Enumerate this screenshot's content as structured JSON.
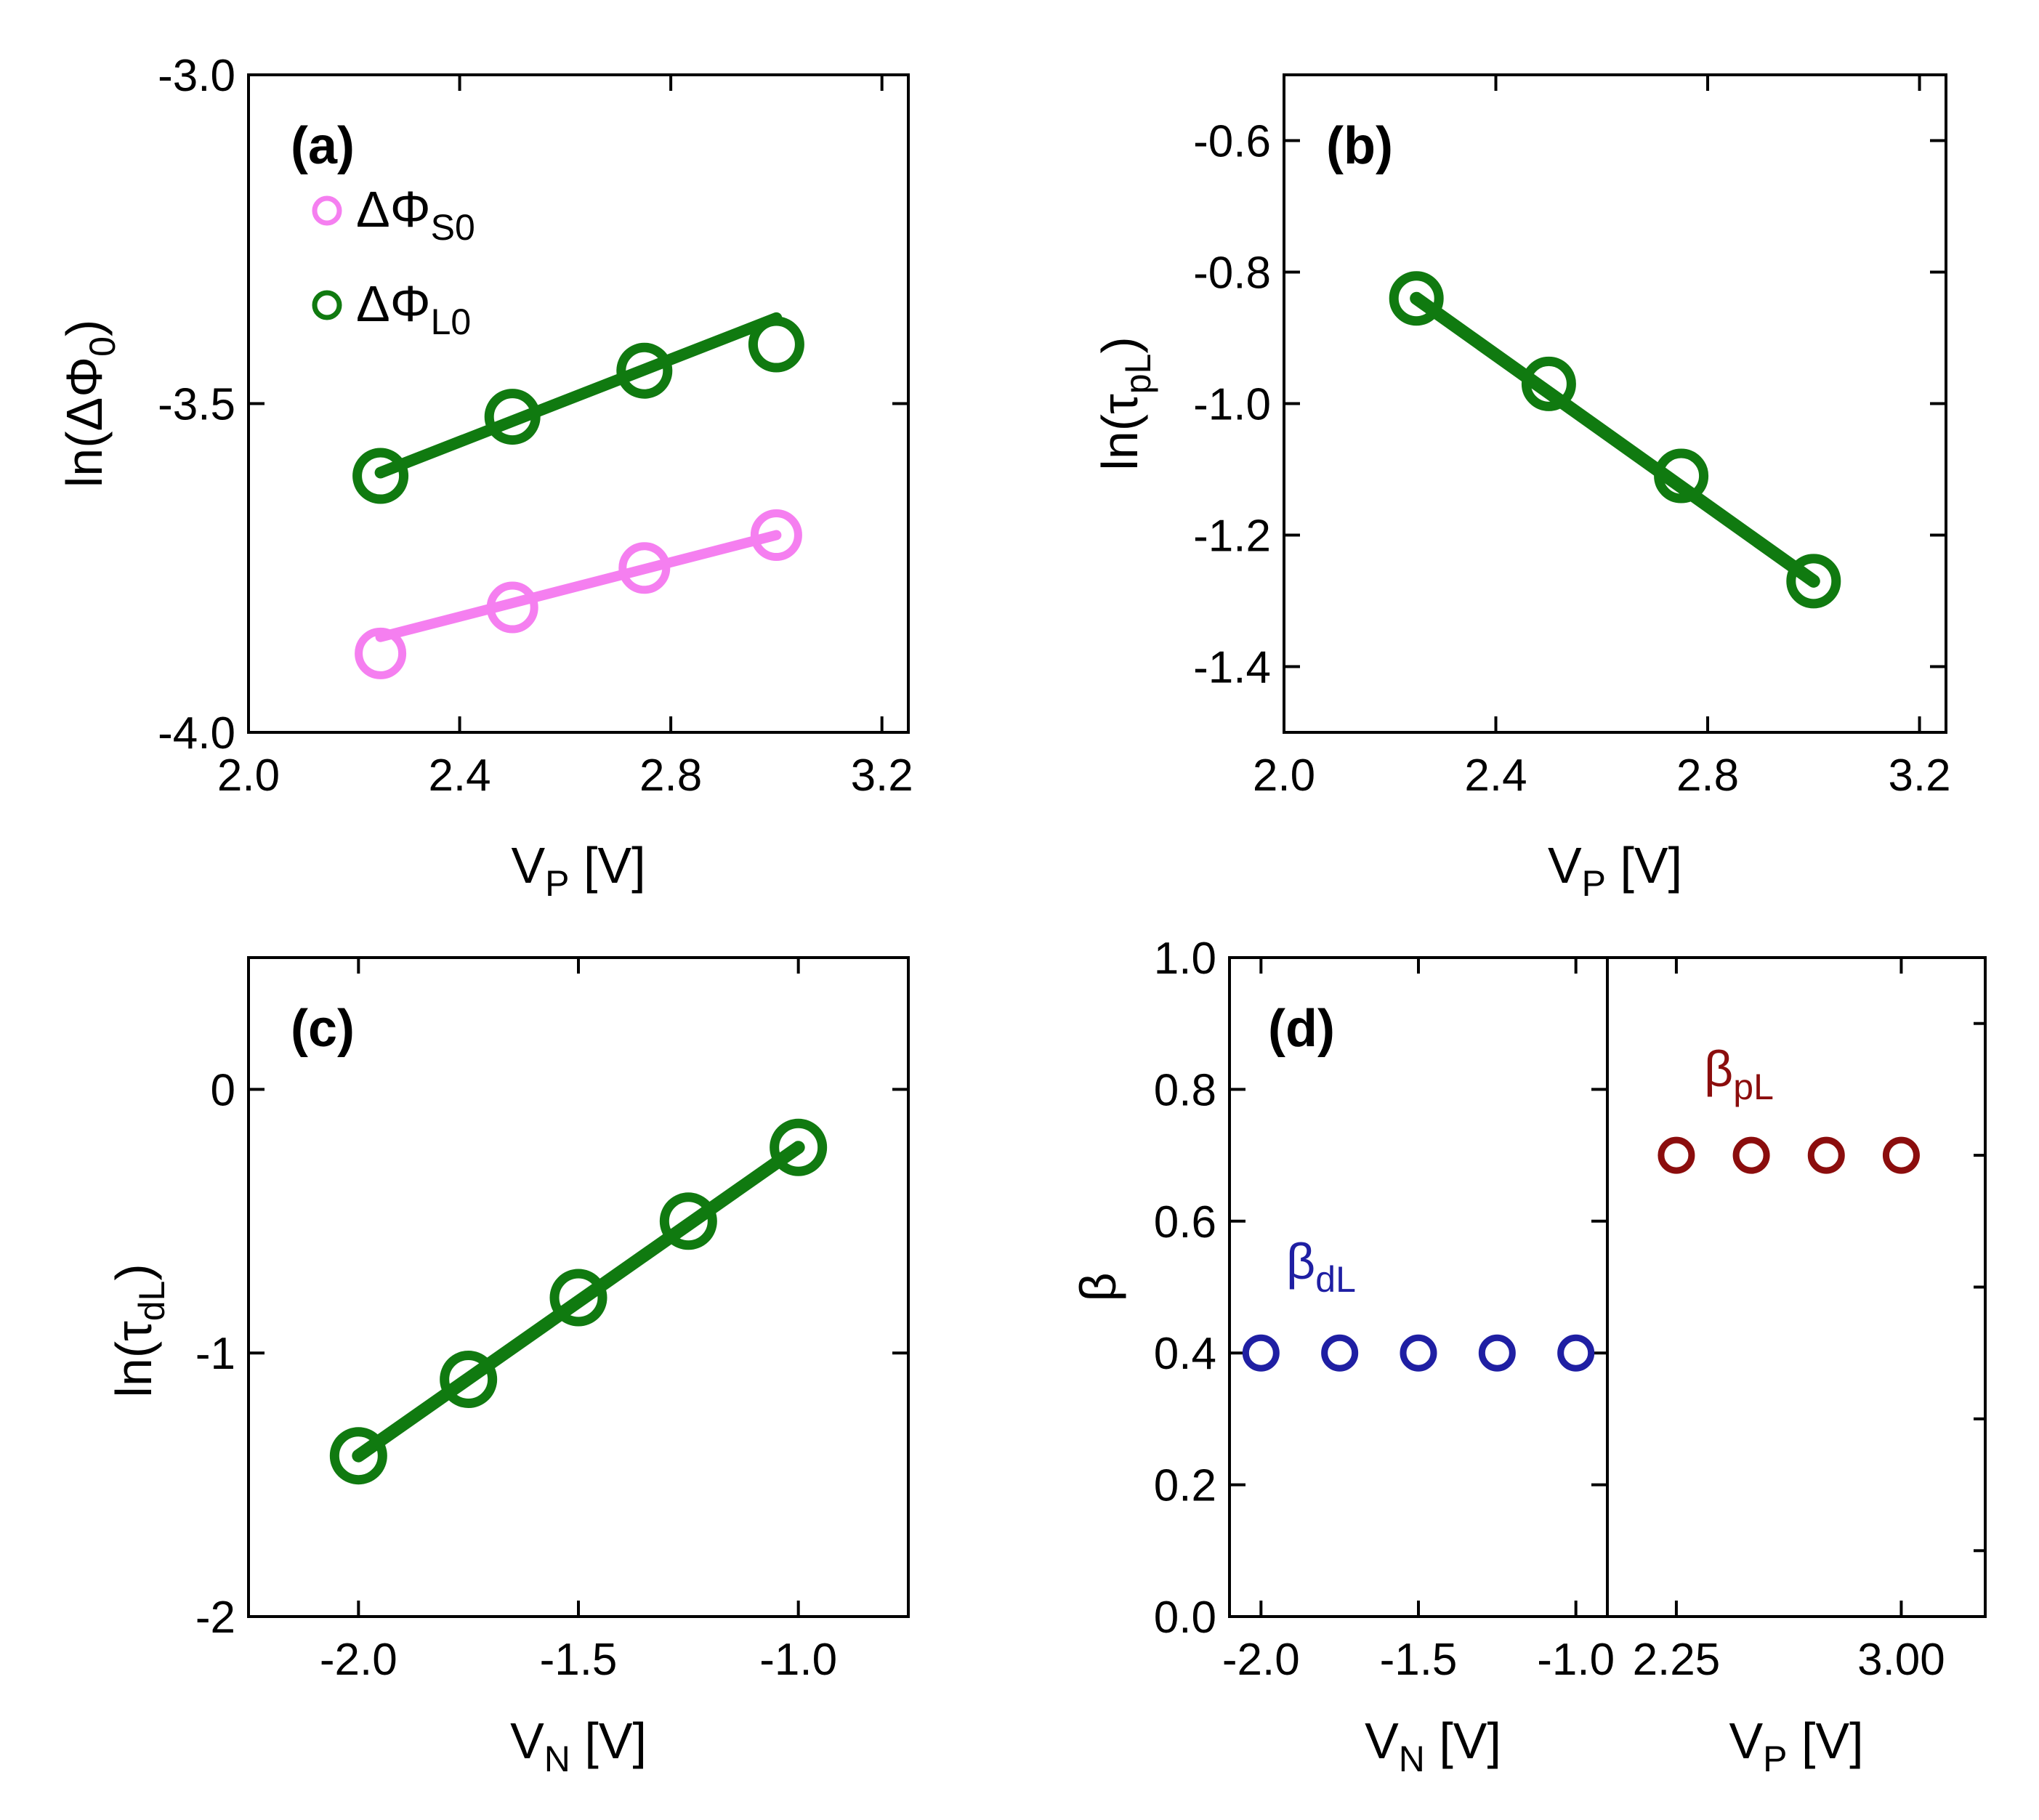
{
  "chart_data": [
    {
      "panel": "(a)",
      "type": "scatter",
      "xlabel": "V",
      "xlabel_sub": "P",
      "xlabel_unit": "[V]",
      "ylabel": "ln(ΔΦ",
      "ylabel_sub": "0",
      "ylabel_close": ")",
      "xlim": [
        2.0,
        3.25
      ],
      "ylim": [
        -4.0,
        -3.0
      ],
      "xticks": [
        2.0,
        2.4,
        2.8,
        3.2
      ],
      "xtick_labels": [
        "2.0",
        "2.4",
        "2.8",
        "3.2"
      ],
      "yticks": [
        -4.0,
        -3.5,
        -3.0
      ],
      "ytick_labels": [
        "-4.0",
        "-3.5",
        "-3.0"
      ],
      "series": [
        {
          "name": "ΔΦ",
          "name_sub": "S0",
          "color": "#f57ff0",
          "x": [
            2.25,
            2.5,
            2.75,
            3.0
          ],
          "y": [
            -3.88,
            -3.81,
            -3.75,
            -3.7
          ],
          "fit_x": [
            2.25,
            3.0
          ],
          "fit_y": [
            -3.855,
            -3.7
          ]
        },
        {
          "name": "ΔΦ",
          "name_sub": "L0",
          "color": "#107a10",
          "x": [
            2.25,
            2.5,
            2.75,
            3.0
          ],
          "y": [
            -3.61,
            -3.52,
            -3.45,
            -3.41
          ],
          "fit_x": [
            2.25,
            3.0
          ],
          "fit_y": [
            -3.605,
            -3.37
          ]
        }
      ]
    },
    {
      "panel": "(b)",
      "type": "scatter",
      "xlabel": "V",
      "xlabel_sub": "P",
      "xlabel_unit": "[V]",
      "ylabel": "ln(τ",
      "ylabel_sub": "pL",
      "ylabel_close": ")",
      "xlim": [
        2.0,
        3.25
      ],
      "ylim": [
        -1.5,
        -0.5
      ],
      "xticks": [
        2.0,
        2.4,
        2.8,
        3.2
      ],
      "xtick_labels": [
        "2.0",
        "2.4",
        "2.8",
        "3.2"
      ],
      "yticks": [
        -1.4,
        -1.2,
        -1.0,
        -0.8,
        -0.6
      ],
      "ytick_labels": [
        "-1.4",
        "-1.2",
        "-1.0",
        "-0.8",
        "-0.6"
      ],
      "series": [
        {
          "name": "τpL",
          "color": "#107a10",
          "x": [
            2.25,
            2.5,
            2.75,
            3.0
          ],
          "y": [
            -0.84,
            -0.97,
            -1.11,
            -1.27
          ],
          "fit_x": [
            2.25,
            3.0
          ],
          "fit_y": [
            -0.84,
            -1.27
          ]
        }
      ]
    },
    {
      "panel": "(c)",
      "type": "scatter",
      "xlabel": "V",
      "xlabel_sub": "N",
      "xlabel_unit": "[V]",
      "ylabel": "ln(τ",
      "ylabel_sub": "dL",
      "ylabel_close": ")",
      "xlim": [
        -2.25,
        -0.75
      ],
      "ylim": [
        -2.0,
        0.5
      ],
      "xticks": [
        -2.0,
        -1.5,
        -1.0
      ],
      "xtick_labels": [
        "-2.0",
        "-1.5",
        "-1.0"
      ],
      "yticks": [
        -2,
        -1,
        0
      ],
      "ytick_labels": [
        "-2",
        "-1",
        "0"
      ],
      "series": [
        {
          "name": "τdL",
          "color": "#107a10",
          "x": [
            -2.0,
            -1.75,
            -1.5,
            -1.25,
            -1.0
          ],
          "y": [
            -1.39,
            -1.1,
            -0.79,
            -0.5,
            -0.22
          ],
          "fit_x": [
            -2.0,
            -1.0
          ],
          "fit_y": [
            -1.39,
            -0.22
          ]
        }
      ]
    },
    {
      "panel": "(d)",
      "type": "scatter",
      "ylabel": "β",
      "ylim": [
        0.0,
        1.0
      ],
      "yticks": [
        0.0,
        0.2,
        0.4,
        0.6,
        0.8,
        1.0
      ],
      "ytick_labels": [
        "0.0",
        "0.2",
        "0.4",
        "0.6",
        "0.8",
        "1.0"
      ],
      "left": {
        "xlabel": "V",
        "xlabel_sub": "N",
        "xlabel_unit": "[V]",
        "xlim": [
          -2.1,
          -0.9
        ],
        "xticks": [
          -2.0,
          -1.5,
          -1.0
        ],
        "xtick_labels": [
          "-2.0",
          "-1.5",
          "-1.0"
        ],
        "series": {
          "name": "β",
          "name_sub": "dL",
          "color": "#1f1fa3",
          "x": [
            -2.0,
            -1.75,
            -1.5,
            -1.25,
            -1.0
          ],
          "y": [
            0.4,
            0.4,
            0.4,
            0.4,
            0.4
          ]
        }
      },
      "right": {
        "xlabel": "V",
        "xlabel_sub": "P",
        "xlabel_unit": "[V]",
        "xlim": [
          2.02,
          3.28
        ],
        "xticks": [
          2.25,
          3.0
        ],
        "xtick_labels": [
          "2.25",
          "3.00"
        ],
        "series": {
          "name": "β",
          "name_sub": "pL",
          "color": "#8b0d0d",
          "x": [
            2.25,
            2.5,
            2.75,
            3.0
          ],
          "y": [
            0.7,
            0.7,
            0.7,
            0.7
          ]
        }
      }
    }
  ]
}
